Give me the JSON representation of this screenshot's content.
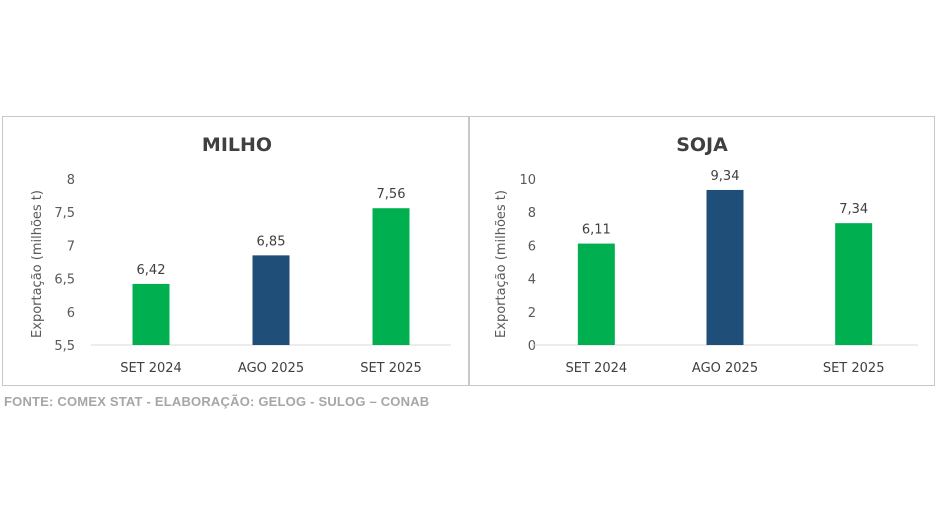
{
  "chart_data": [
    {
      "type": "bar",
      "title": "MILHO",
      "ylabel": "Exportação (milhões t)",
      "categories": [
        "SET 2024",
        "AGO 2025",
        "SET 2025"
      ],
      "values": [
        6.42,
        6.85,
        7.56
      ],
      "value_labels": [
        "6,42",
        "6,85",
        "7,56"
      ],
      "colors": [
        "#00B050",
        "#1F4E79",
        "#00B050"
      ],
      "ylim": [
        5.5,
        8
      ],
      "yticks": [
        5.5,
        6,
        6.5,
        7,
        7.5,
        8
      ],
      "ytick_labels": [
        "5,5",
        "6",
        "6,5",
        "7",
        "7,5",
        "8"
      ],
      "grid": false
    },
    {
      "type": "bar",
      "title": "SOJA",
      "ylabel": "Exportação (milhões t)",
      "categories": [
        "SET 2024",
        "AGO 2025",
        "SET 2025"
      ],
      "values": [
        6.11,
        9.34,
        7.34
      ],
      "value_labels": [
        "6,11",
        "9,34",
        "7,34"
      ],
      "colors": [
        "#00B050",
        "#1F4E79",
        "#00B050"
      ],
      "ylim": [
        0,
        10
      ],
      "yticks": [
        0,
        2,
        4,
        6,
        8,
        10
      ],
      "ytick_labels": [
        "0",
        "2",
        "4",
        "6",
        "8",
        "10"
      ],
      "grid": false
    }
  ],
  "source": "FONTE: COMEX STAT - ELABORAÇÃO: GELOG - SULOG – CONAB"
}
